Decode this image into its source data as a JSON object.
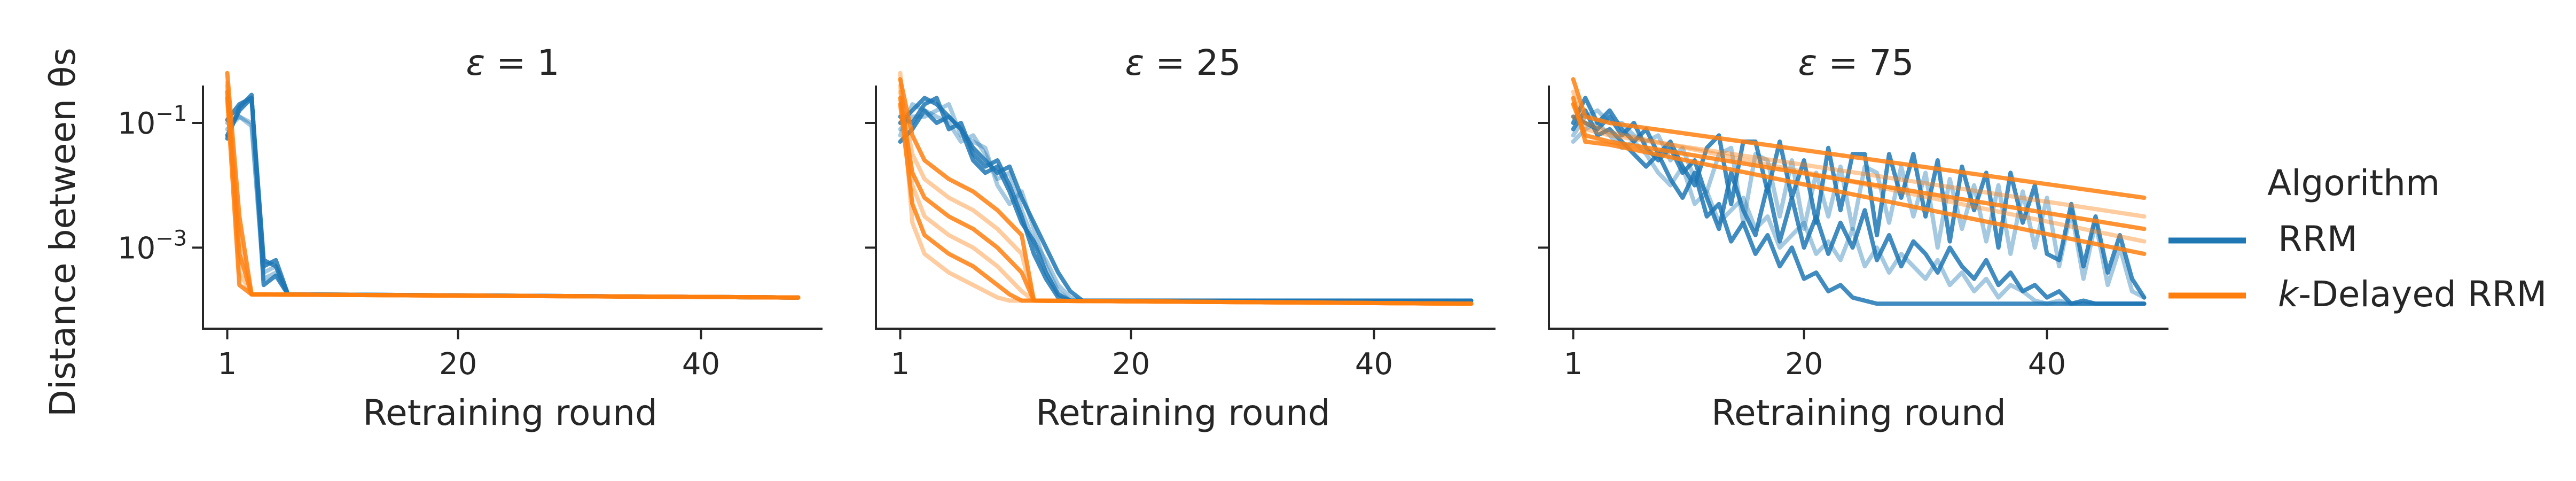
{
  "colors": {
    "rrm": "#1f77b4",
    "delayed": "#ff7f0e",
    "axis": "#262626"
  },
  "ylabel": "Distance between θs",
  "xlabel": "Retraining round",
  "legend": {
    "title": "Algorithm",
    "entries": [
      {
        "label": "RRM",
        "color": "#1f77b4"
      },
      {
        "label_prefix": "k",
        "label_suffix": "-Delayed RRM",
        "color": "#ff7f0e"
      }
    ]
  },
  "chart_data": [
    {
      "type": "line",
      "title_prefix": "ε",
      "title_suffix": " = 1",
      "xlabel": "Retraining round",
      "ylabel": "Distance between θs",
      "yscale": "log",
      "xlim": [
        -1,
        50
      ],
      "ylim_log10": [
        -4.3,
        -0.4
      ],
      "xticks": [
        1,
        20,
        40
      ],
      "yticks_log10": [
        -1,
        -3
      ],
      "ytick_labels": [
        "10",
        "10"
      ],
      "ytick_exponents": [
        "−1",
        "−3"
      ],
      "series": [
        {
          "group": "RRM",
          "runs": 5,
          "x": [
            1,
            2,
            3,
            4,
            5,
            6,
            48
          ],
          "y_log10_runs": [
            [
              -1.2,
              -0.8,
              -0.6,
              -3.2,
              -3.3,
              -3.75,
              -3.8
            ],
            [
              -1.0,
              -0.9,
              -1.05,
              -3.5,
              -3.4,
              -3.75,
              -3.8
            ],
            [
              -1.25,
              -0.75,
              -0.55,
              -3.6,
              -3.45,
              -3.75,
              -3.8
            ],
            [
              -1.1,
              -0.9,
              -1.0,
              -3.4,
              -3.3,
              -3.75,
              -3.8
            ],
            [
              -0.95,
              -0.7,
              -0.6,
              -3.3,
              -3.2,
              -3.75,
              -3.8
            ]
          ]
        },
        {
          "group": "k-Delayed RRM",
          "runs": 5,
          "x": [
            1,
            2,
            3,
            48
          ],
          "y_log10_runs": [
            [
              -0.2,
              -2.5,
              -3.75,
              -3.8
            ],
            [
              -0.4,
              -2.8,
              -3.75,
              -3.8
            ],
            [
              -0.5,
              -3.1,
              -3.75,
              -3.8
            ],
            [
              -0.35,
              -3.4,
              -3.75,
              -3.8
            ],
            [
              -0.6,
              -3.6,
              -3.75,
              -3.8
            ]
          ]
        }
      ]
    },
    {
      "type": "line",
      "title_prefix": "ε",
      "title_suffix": " = 25",
      "xlabel": "Retraining round",
      "yscale": "log",
      "xlim": [
        -1,
        50
      ],
      "ylim_log10": [
        -4.3,
        -0.4
      ],
      "xticks": [
        1,
        20,
        40
      ],
      "yticks_log10": [
        -1,
        -3
      ],
      "series": [
        {
          "group": "RRM",
          "runs": 5,
          "x": [
            1,
            2,
            3,
            4,
            5,
            6,
            7,
            8,
            9,
            10,
            11,
            12,
            13,
            14,
            15,
            16,
            48
          ],
          "y_log10_runs": [
            [
              -1.0,
              -0.8,
              -0.6,
              -0.7,
              -0.9,
              -1.1,
              -1.4,
              -1.6,
              -1.8,
              -1.7,
              -2.2,
              -2.6,
              -3.0,
              -3.4,
              -3.7,
              -3.85,
              -3.85
            ],
            [
              -1.2,
              -0.7,
              -0.8,
              -0.9,
              -1.0,
              -1.3,
              -1.2,
              -1.5,
              -1.9,
              -1.8,
              -2.4,
              -2.9,
              -3.2,
              -3.6,
              -3.8,
              -3.85,
              -3.85
            ],
            [
              -0.9,
              -1.0,
              -0.7,
              -0.6,
              -1.1,
              -1.0,
              -1.5,
              -1.7,
              -1.6,
              -2.0,
              -2.5,
              -3.1,
              -3.5,
              -3.8,
              -3.85,
              -3.85,
              -3.85
            ],
            [
              -1.1,
              -0.9,
              -0.9,
              -0.8,
              -0.7,
              -1.2,
              -1.3,
              -1.4,
              -2.0,
              -2.3,
              -2.1,
              -2.7,
              -3.3,
              -3.7,
              -3.85,
              -3.85,
              -3.85
            ],
            [
              -1.3,
              -1.1,
              -0.8,
              -1.0,
              -0.9,
              -1.1,
              -1.6,
              -1.8,
              -1.7,
              -2.1,
              -2.6,
              -2.9,
              -3.4,
              -3.75,
              -3.85,
              -3.85,
              -3.85
            ]
          ]
        },
        {
          "group": "k-Delayed RRM",
          "runs": 6,
          "x": [
            1,
            2,
            3,
            4,
            5,
            6,
            7,
            8,
            9,
            10,
            11,
            12,
            48
          ],
          "y_log10_runs": [
            [
              -0.3,
              -1.2,
              -1.6,
              -1.75,
              -1.9,
              -2.0,
              -2.1,
              -2.25,
              -2.4,
              -2.6,
              -2.8,
              -3.85,
              -3.9
            ],
            [
              -0.5,
              -1.5,
              -1.9,
              -2.05,
              -2.2,
              -2.3,
              -2.4,
              -2.55,
              -2.7,
              -2.9,
              -3.1,
              -3.85,
              -3.9
            ],
            [
              -0.6,
              -1.8,
              -2.2,
              -2.35,
              -2.5,
              -2.6,
              -2.7,
              -2.85,
              -3.0,
              -3.2,
              -3.4,
              -3.85,
              -3.9
            ],
            [
              -0.4,
              -2.0,
              -2.5,
              -2.65,
              -2.8,
              -2.9,
              -3.0,
              -3.15,
              -3.3,
              -3.5,
              -3.7,
              -3.85,
              -3.9
            ],
            [
              -0.7,
              -2.3,
              -2.8,
              -2.95,
              -3.1,
              -3.2,
              -3.3,
              -3.45,
              -3.6,
              -3.75,
              -3.85,
              -3.85,
              -3.9
            ],
            [
              -0.2,
              -2.6,
              -3.1,
              -3.25,
              -3.4,
              -3.5,
              -3.6,
              -3.7,
              -3.8,
              -3.85,
              -3.85,
              -3.85,
              -3.9
            ]
          ]
        }
      ]
    },
    {
      "type": "line",
      "title_prefix": "ε",
      "title_suffix": " = 75",
      "xlabel": "Retraining round",
      "yscale": "log",
      "xlim": [
        -1,
        50
      ],
      "ylim_log10": [
        -4.3,
        -0.4
      ],
      "xticks": [
        1,
        20,
        40
      ],
      "yticks_log10": [
        -1,
        -3
      ],
      "series": [
        {
          "group": "RRM",
          "runs": 5,
          "x": [
            1,
            2,
            3,
            4,
            5,
            6,
            7,
            8,
            9,
            10,
            11,
            12,
            13,
            14,
            15,
            16,
            17,
            18,
            19,
            20,
            21,
            22,
            23,
            24,
            25,
            26,
            27,
            28,
            29,
            30,
            31,
            32,
            33,
            34,
            35,
            36,
            37,
            38,
            39,
            40,
            41,
            42,
            43,
            44,
            45,
            46,
            47,
            48
          ],
          "y_log10_runs": [
            [
              -1.0,
              -0.6,
              -1.0,
              -0.8,
              -1.1,
              -1.3,
              -1.1,
              -1.5,
              -1.3,
              -1.7,
              -2.0,
              -1.4,
              -1.2,
              -2.3,
              -1.3,
              -1.3,
              -2.1,
              -1.3,
              -2.2,
              -1.6,
              -2.6,
              -1.4,
              -2.4,
              -1.5,
              -1.5,
              -2.8,
              -1.5,
              -2.2,
              -1.5,
              -2.5,
              -1.6,
              -2.9,
              -1.7,
              -2.4,
              -1.8,
              -3.0,
              -1.8,
              -2.6,
              -2.0,
              -3.1,
              -3.2,
              -2.3,
              -3.3,
              -2.5,
              -3.4,
              -2.8,
              -3.5,
              -3.8
            ],
            [
              -1.2,
              -0.9,
              -0.8,
              -1.0,
              -1.0,
              -1.2,
              -1.3,
              -1.2,
              -1.6,
              -1.4,
              -1.9,
              -2.1,
              -1.5,
              -1.4,
              -2.6,
              -1.5,
              -1.6,
              -2.5,
              -1.6,
              -2.7,
              -1.8,
              -2.5,
              -1.7,
              -2.7,
              -1.7,
              -1.8,
              -2.6,
              -1.7,
              -2.5,
              -1.8,
              -3.0,
              -1.9,
              -2.7,
              -2.0,
              -2.9,
              -2.0,
              -3.1,
              -2.1,
              -3.0,
              -2.2,
              -3.3,
              -2.4,
              -3.5,
              -2.6,
              -3.6,
              -3.0,
              -3.7,
              -3.8
            ],
            [
              -0.9,
              -1.0,
              -1.1,
              -0.9,
              -1.2,
              -1.0,
              -1.4,
              -1.6,
              -1.4,
              -1.8,
              -1.6,
              -2.2,
              -2.7,
              -1.8,
              -2.4,
              -2.8,
              -2.0,
              -2.9,
              -2.2,
              -3.0,
              -2.5,
              -3.1,
              -2.6,
              -3.0,
              -2.4,
              -3.2,
              -2.8,
              -3.3,
              -2.9,
              -3.1,
              -3.4,
              -3.0,
              -3.3,
              -3.5,
              -3.2,
              -3.6,
              -3.4,
              -3.7,
              -3.6,
              -3.8,
              -3.7,
              -3.9,
              -3.85,
              -3.9,
              -3.9,
              -3.9,
              -3.9,
              -3.9
            ],
            [
              -1.3,
              -1.1,
              -1.0,
              -1.2,
              -1.4,
              -1.3,
              -1.5,
              -1.8,
              -2.0,
              -1.7,
              -2.3,
              -2.1,
              -2.6,
              -2.4,
              -2.2,
              -2.7,
              -2.5,
              -3.0,
              -2.8,
              -2.6,
              -3.1,
              -2.9,
              -3.2,
              -2.7,
              -3.3,
              -3.0,
              -3.4,
              -3.1,
              -3.3,
              -3.5,
              -3.2,
              -3.6,
              -3.4,
              -3.7,
              -3.5,
              -3.8,
              -3.6,
              -3.7,
              -3.85,
              -3.9,
              -3.85,
              -3.9,
              -3.9,
              -3.9,
              -3.9,
              -3.9,
              -3.9,
              -3.9
            ],
            [
              -1.1,
              -0.8,
              -1.2,
              -1.1,
              -1.3,
              -1.5,
              -1.7,
              -1.5,
              -1.9,
              -2.2,
              -1.8,
              -2.5,
              -2.3,
              -2.9,
              -2.6,
              -3.1,
              -2.8,
              -3.3,
              -3.0,
              -3.5,
              -3.4,
              -3.7,
              -3.6,
              -3.8,
              -3.85,
              -3.9,
              -3.9,
              -3.9,
              -3.9,
              -3.9,
              -3.9,
              -3.9,
              -3.9,
              -3.9,
              -3.9,
              -3.9,
              -3.9,
              -3.9,
              -3.9,
              -3.9,
              -3.9,
              -3.9,
              -3.9,
              -3.9,
              -3.9,
              -3.9,
              -3.9,
              -3.9
            ]
          ]
        },
        {
          "group": "k-Delayed RRM",
          "runs": 5,
          "x": [
            1,
            2,
            4,
            48
          ],
          "y_log10_runs": [
            [
              -0.3,
              -0.9,
              -1.0,
              -2.2
            ],
            [
              -0.5,
              -1.1,
              -1.2,
              -2.5
            ],
            [
              -0.7,
              -1.2,
              -1.3,
              -2.7
            ],
            [
              -0.9,
              -1.0,
              -1.15,
              -2.9
            ],
            [
              -0.6,
              -1.3,
              -1.35,
              -3.1
            ]
          ]
        }
      ]
    }
  ]
}
